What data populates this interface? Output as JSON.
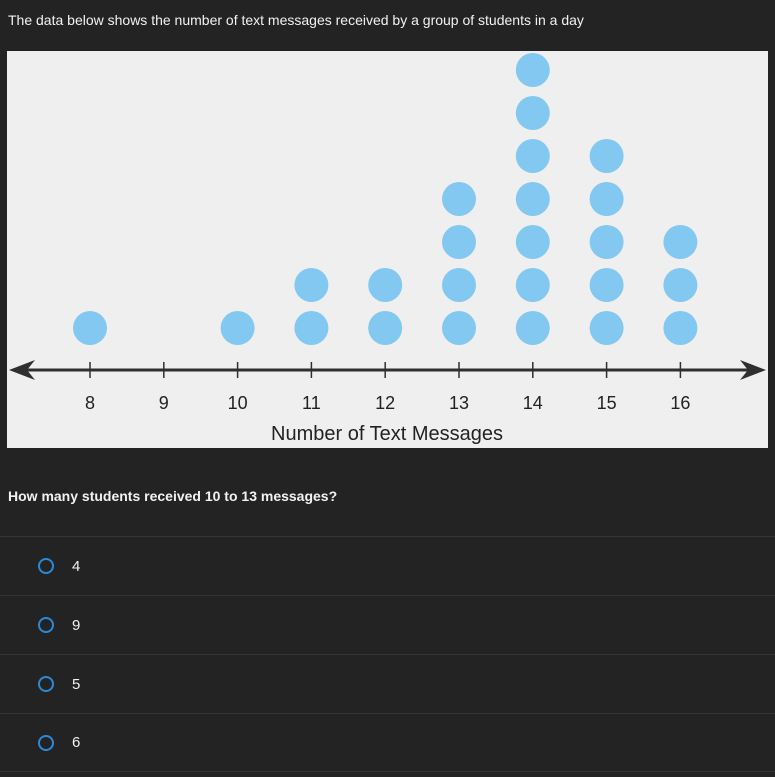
{
  "intro_text": "The data below shows the number of text messages received by a group of students in a day",
  "question": "How many students received 10 to 13 messages?",
  "answers": [
    {
      "label": "4"
    },
    {
      "label": "9"
    },
    {
      "label": "5"
    },
    {
      "label": "6"
    }
  ],
  "colors": {
    "dot": "#82c8f0",
    "radio": "#2b8ad8",
    "axis": "#2f2f2f",
    "plot_bg": "#efefef"
  },
  "chart_data": {
    "type": "scatter",
    "subtype": "dot-plot",
    "xlabel": "Number of Text Messages",
    "ylabel": "",
    "categories": [
      "8",
      "9",
      "10",
      "11",
      "12",
      "13",
      "14",
      "15",
      "16"
    ],
    "counts": [
      1,
      0,
      1,
      2,
      2,
      4,
      7,
      5,
      3
    ],
    "grid": false
  }
}
